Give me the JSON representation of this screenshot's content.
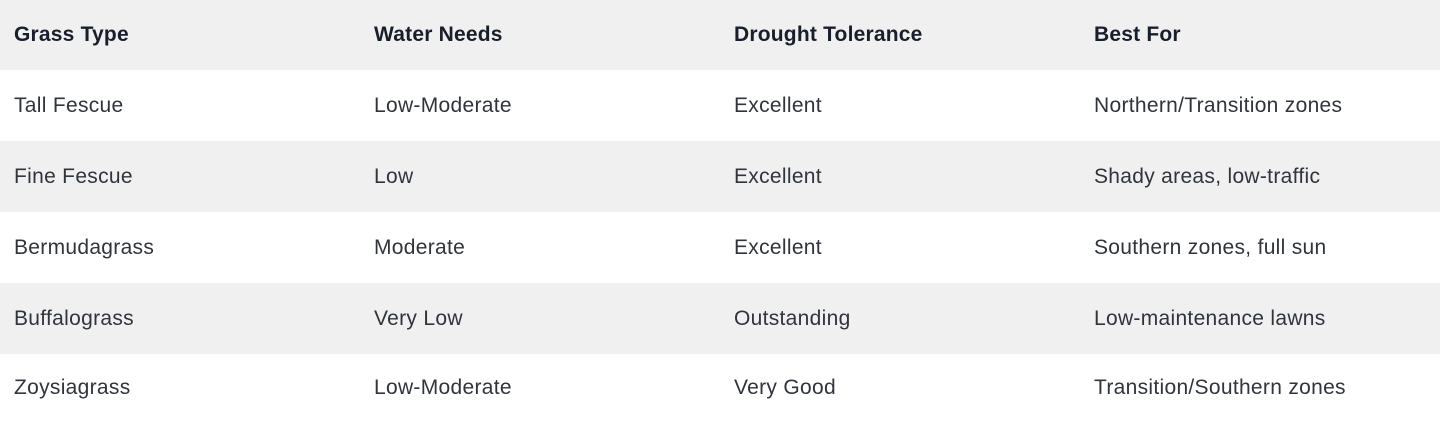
{
  "table": {
    "columns": [
      {
        "label": "Grass Type"
      },
      {
        "label": "Water Needs"
      },
      {
        "label": "Drought Tolerance"
      },
      {
        "label": "Best For"
      }
    ],
    "rows": [
      {
        "grass_type": "Tall Fescue",
        "water_needs": "Low-Moderate",
        "drought_tolerance": "Excellent",
        "best_for": "Northern/Transition zones"
      },
      {
        "grass_type": "Fine Fescue",
        "water_needs": "Low",
        "drought_tolerance": "Excellent",
        "best_for": "Shady areas, low-traffic"
      },
      {
        "grass_type": "Bermudagrass",
        "water_needs": "Moderate",
        "drought_tolerance": "Excellent",
        "best_for": "Southern zones, full sun"
      },
      {
        "grass_type": "Buffalograss",
        "water_needs": "Very Low",
        "drought_tolerance": "Outstanding",
        "best_for": "Low-maintenance lawns"
      },
      {
        "grass_type": "Zoysiagrass",
        "water_needs": "Low-Moderate",
        "drought_tolerance": "Very Good",
        "best_for": "Transition/Southern zones"
      }
    ]
  },
  "colors": {
    "header_bg": "#f0f0f0",
    "alt_row_bg": "#f0f0f0",
    "row_bg": "#ffffff",
    "header_text": "#191e2b",
    "body_text": "#30343d"
  }
}
